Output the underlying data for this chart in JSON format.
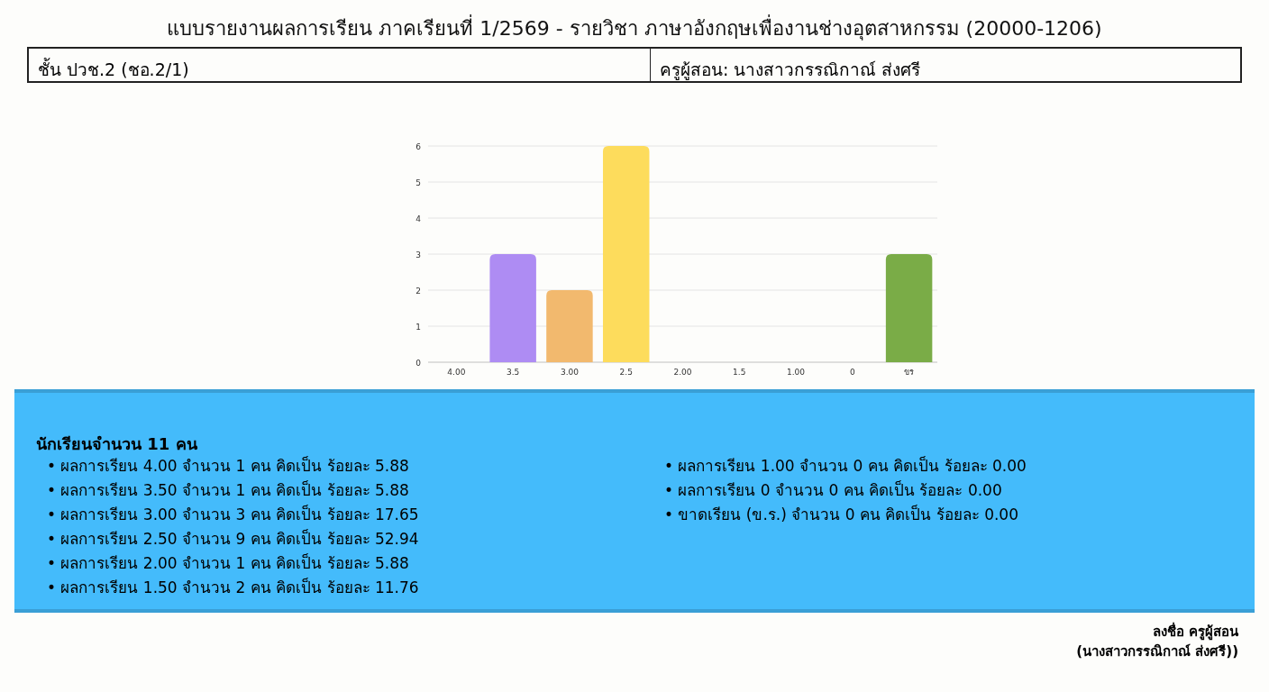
{
  "chart_data": {
    "type": "bar",
    "title": "แบบรายงานผลการเรียน ภาคเรียนที่ 1/2569  - รายวิชา ภาษาอังกฤษเพื่องานช่างอุตสาหกรรม (20000-1206)",
    "categories": [
      "4.00",
      "3.5",
      "3.00",
      "2.5",
      "2.00",
      "1.5",
      "1.00",
      "0",
      "ขร"
    ],
    "values": [
      0,
      3,
      2,
      6,
      0,
      0,
      0,
      0,
      3
    ],
    "colors": [
      null,
      "#ae8cf3",
      "#f2b96e",
      "#fddc5c",
      null,
      null,
      null,
      null,
      "#7aac47"
    ],
    "ylim": [
      0,
      6
    ],
    "yticks": [
      0,
      1,
      2,
      3,
      4,
      5,
      6
    ],
    "grid": "y",
    "annotations": [
      "ชั้น ปวช.2   (ชอ.2/1)",
      "ครูผู้สอน: นางสาวกรรณิกาณ์ ส่งศรี",
      "นักเรียนจำนวน 11 คน",
      "•  ผลการเรียน 4.00 จำนวน 1 คน คิดเป็น ร้อยละ 5.88",
      "•  ผลการเรียน 3.50 จำนวน 1 คน คิดเป็น ร้อยละ 5.88",
      "•  ผลการเรียน 3.00 จำนวน 3 คน คิดเป็น ร้อยละ 17.65",
      "•  ผลการเรียน 2.50 จำนวน 9 คน คิดเป็น ร้อยละ 52.94",
      "•  ผลการเรียน 2.00 จำนวน 1 คน คิดเป็น ร้อยละ 5.88",
      "•  ผลการเรียน 1.50 จำนวน 2 คน คิดเป็น ร้อยละ 11.76",
      "•  ผลการเรียน 1.00 จำนวน 0 คน คิดเป็น ร้อยละ 0.00",
      "•  ผลการเรียน 0 จำนวน 0 คน คิดเป็น ร้อยละ 0.00",
      "•  ขาดเรียน (ข.ร.) จำนวน 0 คน คิดเป็น ร้อยละ 0.00",
      "ลงชื่อ ครูผู้สอน",
      "(นางสาวกรรณิกาณ์ ส่งศรี))"
    ]
  }
}
